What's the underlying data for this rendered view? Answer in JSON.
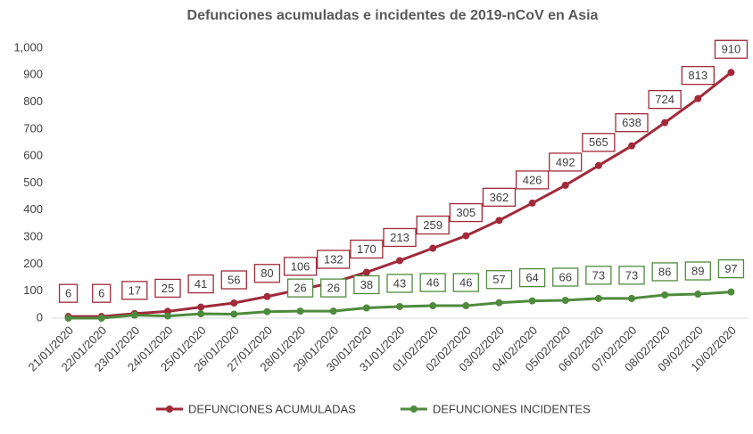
{
  "chart_data": {
    "type": "line",
    "title": "Defunciones acumuladas e incidentes de 2019-nCoV  en Asia",
    "categories": [
      "21/01/2020",
      "22/01/2020",
      "23/01/2020",
      "24/01/2020",
      "25/01/2020",
      "26/01/2020",
      "27/01/2020",
      "28/01/2020",
      "29/01/2020",
      "30/01/2020",
      "31/01/2020",
      "01/02/2020",
      "02/02/2020",
      "03/02/2020",
      "04/02/2020",
      "05/02/2020",
      "06/02/2020",
      "07/02/2020",
      "08/02/2020",
      "09/02/2020",
      "10/02/2020"
    ],
    "series": [
      {
        "name": "DEFUNCIONES ACUMULADAS",
        "color": "#a12a3a",
        "values": [
          6,
          6,
          17,
          25,
          41,
          56,
          80,
          106,
          132,
          170,
          213,
          259,
          305,
          362,
          426,
          492,
          565,
          638,
          724,
          813,
          910
        ],
        "value_labels": [
          "6",
          "6",
          "17",
          "25",
          "41",
          "56",
          "80",
          "106",
          "132",
          "170",
          "213",
          "259",
          "305",
          "362",
          "426",
          "492",
          "565",
          "638",
          "724",
          "813",
          "910"
        ]
      },
      {
        "name": "DEFUNCIONES INCIDENTES",
        "color": "#4e8a3c",
        "values": [
          0,
          0,
          11,
          8,
          16,
          15,
          24,
          26,
          26,
          38,
          43,
          46,
          46,
          57,
          64,
          66,
          73,
          73,
          86,
          89,
          97
        ],
        "value_labels": [
          null,
          null,
          null,
          null,
          null,
          null,
          null,
          "26",
          "26",
          "38",
          "43",
          "46",
          "46",
          "57",
          "64",
          "66",
          "73",
          "73",
          "86",
          "89",
          "97"
        ]
      }
    ],
    "ylim": [
      0,
      1000
    ],
    "yticks": [
      0,
      100,
      200,
      300,
      400,
      500,
      600,
      700,
      800,
      900,
      {
        "value": 1000,
        "label": "1,000"
      }
    ],
    "grid": false,
    "legend": "bottom"
  }
}
